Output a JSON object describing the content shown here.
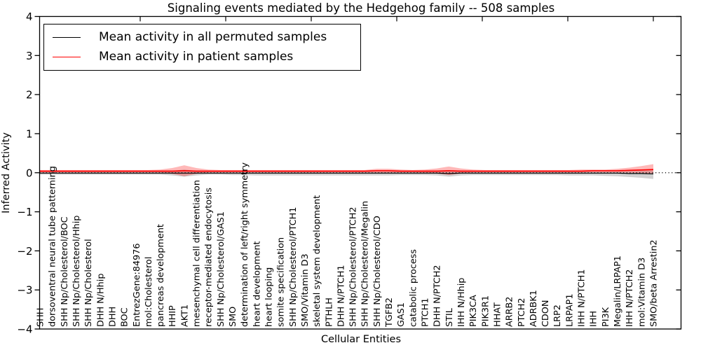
{
  "chart_data": {
    "type": "line",
    "title": "Signaling events mediated by the Hedgehog family -- 508 samples",
    "xlabel": "Cellular Entities",
    "ylabel": "Inferred Activity",
    "ylim": [
      -4,
      4
    ],
    "yticks": [
      -4,
      -3,
      -2,
      -1,
      0,
      1,
      2,
      3,
      4
    ],
    "grid": false,
    "legend_position": "upper-left",
    "zero_line": {
      "y": 0,
      "style": "dotted",
      "color": "#000000"
    },
    "categories": [
      "SHH",
      "dorsoventral neural tube patterning",
      "SHH Np/Cholesterol/BOC",
      "SHH Np/Cholesterol/Hhip",
      "SHH Np/Cholesterol",
      "DHH N/Hhip",
      "DHH",
      "BOC",
      "EntrezGene:84976",
      "mol:Cholesterol",
      "pancreas development",
      "HHIP",
      "AKT1",
      "mesenchymal cell differentiation",
      "receptor-mediated endocytosis",
      "SHH Np/Cholesterol/GAS1",
      "SMO",
      "determination of left/right symmetry",
      "heart development",
      "heart looping",
      "somite specification",
      "SHH Np/Cholesterol/PTCH1",
      "SMO/Vitamin D3",
      "skeletal system development",
      "PTHLH",
      "DHH N/PTCH1",
      "SHH Np/Cholesterol/PTCH2",
      "SHH Np/Cholesterol/Megalin",
      "SHH Np/Cholesterol/CDO",
      "TGFB2",
      "GAS1",
      "catabolic process",
      "PTCH1",
      "DHH N/PTCH2",
      "STIL",
      "IHH N/Hhip",
      "PIK3CA",
      "PIK3R1",
      "HHAT",
      "ARRB2",
      "PTCH2",
      "ADRBK1",
      "CDON",
      "LRP2",
      "LRPAP1",
      "IHH N/PTCH1",
      "IHH",
      "PI3K",
      "Megalin/LRPAP1",
      "IHH N/PTCH2",
      "mol:Vitamin D3",
      "SMO/beta Arrestin2"
    ],
    "series": [
      {
        "name": "Mean activity in all permuted samples",
        "color": "#000000",
        "values": [
          -0.01,
          -0.01,
          -0.01,
          -0.01,
          -0.01,
          -0.01,
          -0.01,
          -0.01,
          -0.01,
          -0.01,
          -0.01,
          -0.01,
          -0.01,
          -0.01,
          -0.01,
          -0.01,
          -0.01,
          -0.01,
          -0.01,
          -0.01,
          -0.01,
          -0.01,
          -0.01,
          -0.01,
          -0.01,
          -0.01,
          -0.01,
          -0.01,
          -0.01,
          -0.01,
          -0.01,
          -0.01,
          -0.01,
          -0.01,
          -0.02,
          -0.01,
          -0.01,
          -0.01,
          -0.01,
          -0.01,
          -0.01,
          -0.01,
          -0.01,
          -0.01,
          -0.01,
          -0.01,
          -0.01,
          -0.01,
          -0.01,
          -0.02,
          -0.02,
          -0.03
        ],
        "band": {
          "color": "#999999",
          "opacity": 0.45,
          "upper": [
            0.03,
            0.03,
            0.03,
            0.03,
            0.03,
            0.03,
            0.03,
            0.03,
            0.03,
            0.03,
            0.03,
            0.05,
            0.08,
            0.05,
            0.03,
            0.03,
            0.03,
            0.03,
            0.03,
            0.03,
            0.03,
            0.03,
            0.03,
            0.03,
            0.03,
            0.03,
            0.03,
            0.03,
            0.03,
            0.03,
            0.03,
            0.03,
            0.03,
            0.04,
            0.06,
            0.04,
            0.03,
            0.03,
            0.03,
            0.03,
            0.03,
            0.03,
            0.03,
            0.03,
            0.03,
            0.03,
            0.03,
            0.03,
            0.03,
            0.04,
            0.05,
            0.06
          ],
          "lower": [
            -0.05,
            -0.05,
            -0.05,
            -0.05,
            -0.05,
            -0.05,
            -0.05,
            -0.05,
            -0.05,
            -0.05,
            -0.05,
            -0.07,
            -0.1,
            -0.07,
            -0.05,
            -0.05,
            -0.06,
            -0.06,
            -0.07,
            -0.07,
            -0.07,
            -0.07,
            -0.07,
            -0.07,
            -0.07,
            -0.07,
            -0.07,
            -0.07,
            -0.07,
            -0.07,
            -0.06,
            -0.06,
            -0.06,
            -0.07,
            -0.1,
            -0.07,
            -0.06,
            -0.06,
            -0.06,
            -0.06,
            -0.06,
            -0.06,
            -0.06,
            -0.06,
            -0.07,
            -0.07,
            -0.07,
            -0.08,
            -0.09,
            -0.11,
            -0.13,
            -0.16
          ]
        }
      },
      {
        "name": "Mean activity in patient samples",
        "color": "#ff0000",
        "values": [
          0.04,
          0.04,
          0.04,
          0.04,
          0.04,
          0.04,
          0.04,
          0.04,
          0.04,
          0.04,
          0.04,
          0.04,
          0.05,
          0.04,
          0.04,
          0.04,
          0.04,
          0.04,
          0.04,
          0.04,
          0.04,
          0.04,
          0.04,
          0.04,
          0.04,
          0.04,
          0.04,
          0.04,
          0.05,
          0.05,
          0.04,
          0.04,
          0.04,
          0.04,
          0.05,
          0.04,
          0.04,
          0.04,
          0.04,
          0.04,
          0.04,
          0.04,
          0.04,
          0.04,
          0.04,
          0.04,
          0.05,
          0.05,
          0.05,
          0.06,
          0.07,
          0.08
        ],
        "band": {
          "color": "#ff0000",
          "opacity": 0.28,
          "upper": [
            0.07,
            0.07,
            0.07,
            0.07,
            0.07,
            0.07,
            0.07,
            0.07,
            0.07,
            0.07,
            0.08,
            0.12,
            0.19,
            0.12,
            0.08,
            0.07,
            0.07,
            0.07,
            0.07,
            0.07,
            0.07,
            0.07,
            0.07,
            0.07,
            0.07,
            0.07,
            0.07,
            0.07,
            0.1,
            0.1,
            0.08,
            0.07,
            0.08,
            0.11,
            0.16,
            0.11,
            0.08,
            0.07,
            0.07,
            0.07,
            0.07,
            0.07,
            0.07,
            0.07,
            0.07,
            0.08,
            0.08,
            0.08,
            0.1,
            0.13,
            0.17,
            0.22
          ],
          "lower": [
            0.01,
            0.01,
            0.01,
            0.01,
            0.01,
            0.01,
            0.01,
            0.01,
            0.01,
            0.01,
            0.01,
            -0.03,
            -0.09,
            -0.03,
            0.01,
            0.01,
            0.01,
            0.01,
            0.01,
            0.01,
            0.01,
            0.01,
            0.01,
            0.01,
            0.01,
            0.01,
            0.01,
            0.01,
            0.0,
            0.0,
            0.01,
            0.01,
            0.0,
            -0.02,
            -0.06,
            -0.02,
            0.01,
            0.01,
            0.01,
            0.01,
            0.01,
            0.01,
            0.01,
            0.01,
            0.01,
            0.01,
            0.01,
            0.01,
            0.01,
            0.0,
            -0.01,
            -0.02
          ]
        }
      }
    ]
  }
}
